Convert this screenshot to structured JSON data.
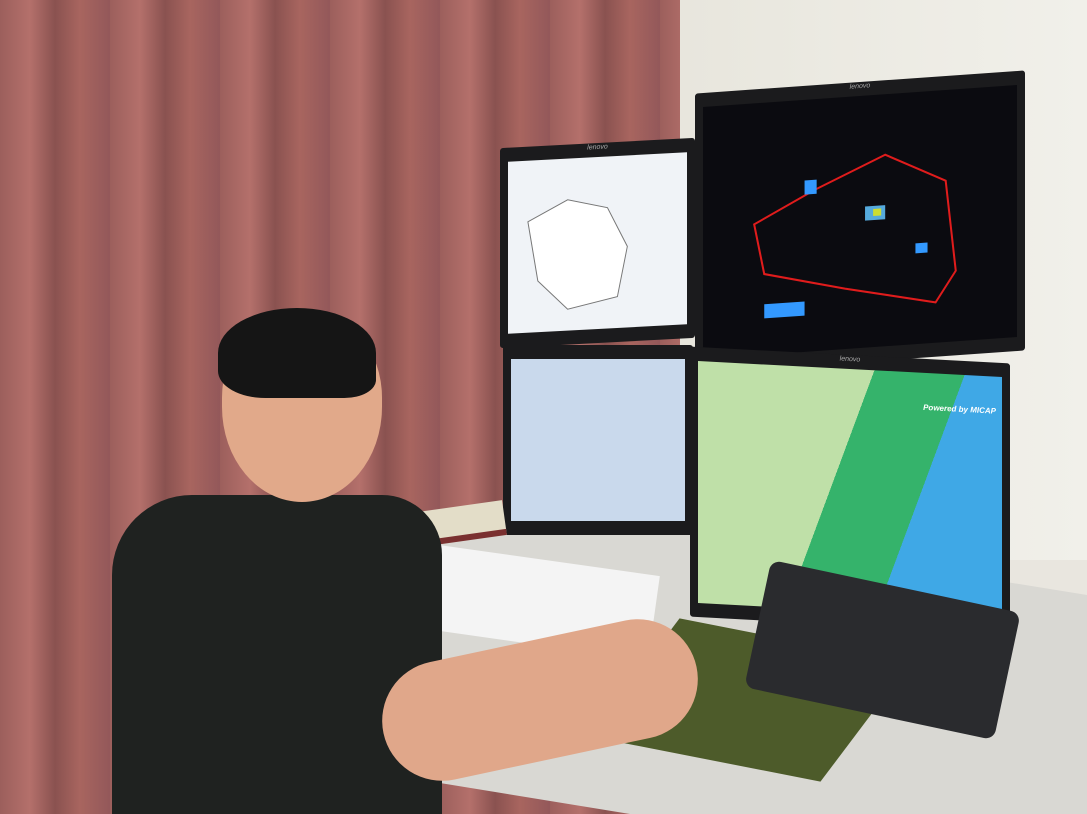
{
  "monitors": {
    "brand": "lenovo",
    "bottom_right_overlay": "Powered by MICAP"
  },
  "colors": {
    "curtain": "#a8655f",
    "wall": "#efeee8",
    "radar_background": "#0b0b10",
    "radar_boundary": "#e01c1c",
    "grid_green": "#35b36b",
    "grid_blue": "#3fa8e6"
  }
}
